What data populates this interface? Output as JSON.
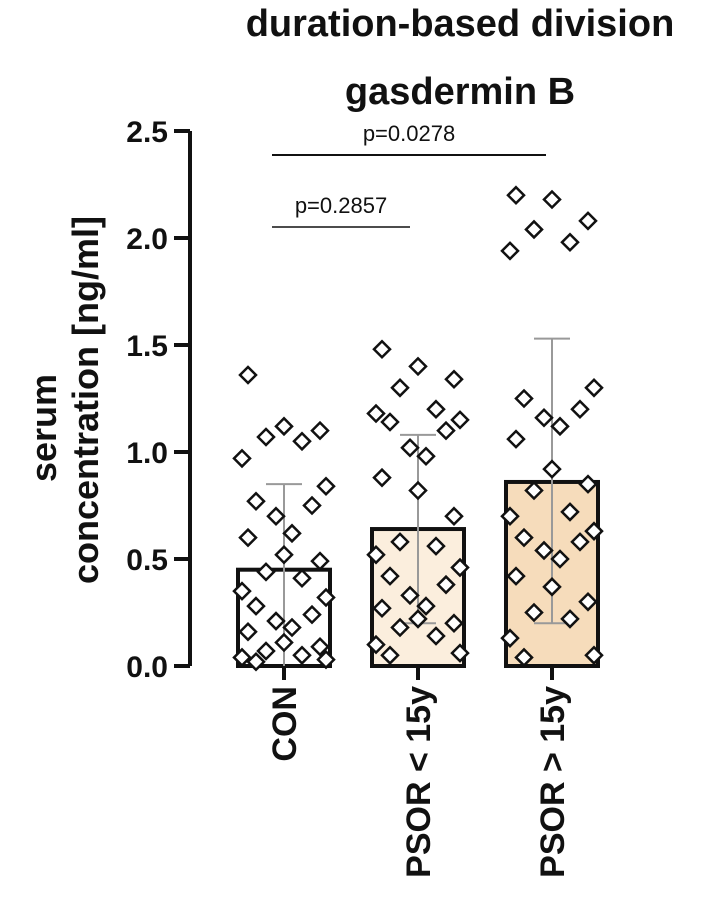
{
  "chart_data": {
    "type": "bar",
    "title_lines": [
      "duration-based division",
      "gasdermin B"
    ],
    "ylabel_lines": [
      "serum",
      "concentration [ng/ml]"
    ],
    "xlabel": "",
    "ylim": [
      0,
      2.5
    ],
    "yticks": [
      "0.0",
      "0.5",
      "1.0",
      "1.5",
      "2.0",
      "2.5"
    ],
    "categories": [
      "CON",
      "PSOR < 15y",
      "PSOR > 15y"
    ],
    "values": [
      0.45,
      0.64,
      0.86
    ],
    "error_lower": [
      0.0,
      0.2,
      0.2
    ],
    "error_upper": [
      0.85,
      1.08,
      1.53
    ],
    "colors": {
      "bars": [
        "#ffffff",
        "#fbeedd",
        "#f6dcbb"
      ],
      "axis": "#111111",
      "error": "#999999"
    },
    "points": [
      [
        1.36,
        1.12,
        1.1,
        1.07,
        1.05,
        0.97,
        0.84,
        0.77,
        0.75,
        0.7,
        0.62,
        0.6,
        0.52,
        0.49,
        0.44,
        0.41,
        0.35,
        0.32,
        0.28,
        0.24,
        0.21,
        0.18,
        0.16,
        0.11,
        0.09,
        0.07,
        0.05,
        0.04,
        0.03,
        0.02
      ],
      [
        1.48,
        1.4,
        1.34,
        1.3,
        1.2,
        1.18,
        1.15,
        1.14,
        1.1,
        1.02,
        0.98,
        0.88,
        0.82,
        0.7,
        0.58,
        0.56,
        0.52,
        0.46,
        0.42,
        0.38,
        0.33,
        0.28,
        0.27,
        0.22,
        0.2,
        0.18,
        0.14,
        0.1,
        0.06,
        0.05
      ],
      [
        2.2,
        2.18,
        2.08,
        2.04,
        1.98,
        1.94,
        1.3,
        1.25,
        1.2,
        1.16,
        1.12,
        1.06,
        0.92,
        0.85,
        0.82,
        0.72,
        0.7,
        0.63,
        0.6,
        0.58,
        0.54,
        0.5,
        0.42,
        0.37,
        0.3,
        0.25,
        0.22,
        0.13,
        0.05,
        0.04
      ]
    ],
    "comparisons": [
      {
        "label": "p=0.2857",
        "from": 0,
        "to": 1
      },
      {
        "label": "p=0.0278",
        "from": 0,
        "to": 2
      }
    ]
  }
}
